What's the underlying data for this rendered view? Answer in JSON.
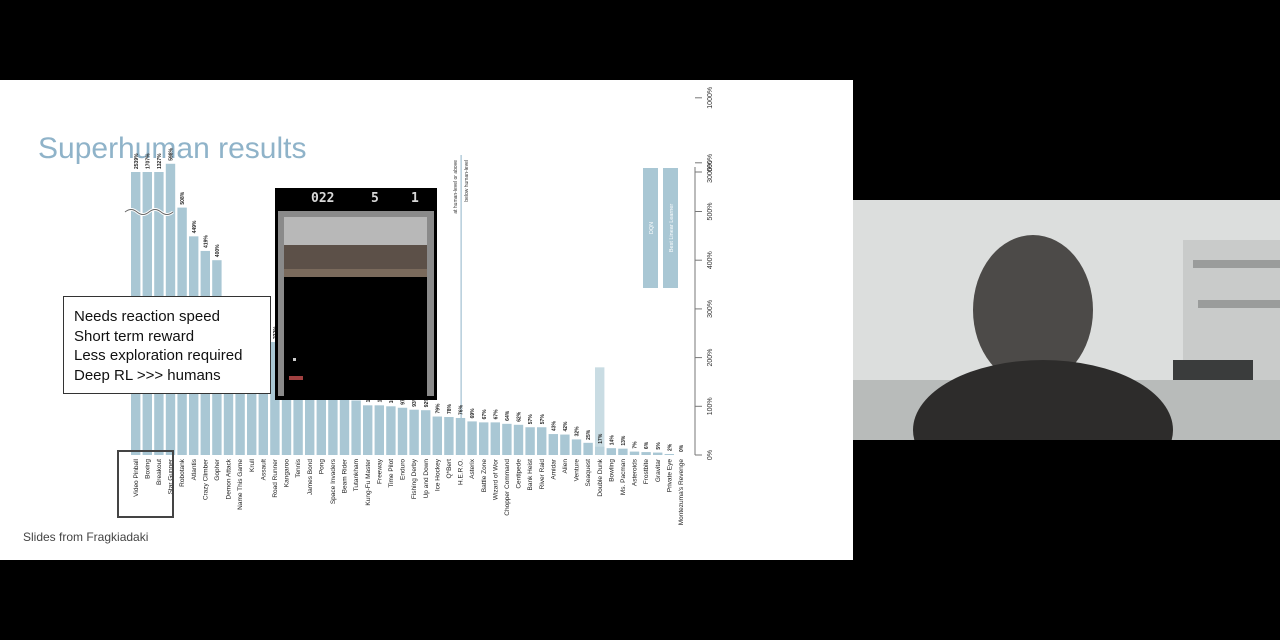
{
  "slide": {
    "title": "Superhuman results",
    "credit": "Slides from Fragkiadaki",
    "callout": [
      "Needs reaction speed",
      "Short term reward",
      "Less exploration required",
      "Deep RL >>> humans"
    ],
    "game": {
      "score_left": "022",
      "score_mid": "5",
      "score_right": "1"
    }
  },
  "chart_data": {
    "type": "bar",
    "title": "",
    "ylabel": "",
    "yticks": [
      "0%",
      "100%",
      "200%",
      "300%",
      "400%",
      "500%",
      "600%",
      "1000%",
      "3000%"
    ],
    "legend": [
      "DQN",
      "Best Linear Learner"
    ],
    "legend_placement": "right",
    "annotations": [
      "at human-level or above",
      "below human-level"
    ],
    "categories": [
      "Video Pinball",
      "Boxing",
      "Breakout",
      "Star Gunner",
      "Robotank",
      "Atlantis",
      "Crazy Climber",
      "Gopher",
      "Demon Attack",
      "Name This Game",
      "Krull",
      "Assault",
      "Road Runner",
      "Kangaroo",
      "Tennis",
      "James Bond",
      "Pong",
      "Space Invaders",
      "Beam Rider",
      "Tutankham",
      "Kung-Fu Master",
      "Freeway",
      "Time Pilot",
      "Enduro",
      "Fishing Derby",
      "Up and Down",
      "Ice Hockey",
      "Q*Bert",
      "H.E.R.O.",
      "Asterix",
      "Battle Zone",
      "Wizard of Wor",
      "Chopper Command",
      "Centipede",
      "Bank Heist",
      "River Raid",
      "Amidar",
      "Alien",
      "Venture",
      "Seaquest",
      "Double Dunk",
      "Bowling",
      "Ms. Pacman",
      "Asteroids",
      "Frostbite",
      "Gravitar",
      "Private Eye",
      "Montezuma's Revenge"
    ],
    "values": [
      2539,
      1707,
      1327,
      598,
      508,
      449,
      419,
      400,
      294,
      278,
      277,
      246,
      232,
      224,
      143,
      141,
      132,
      121,
      119,
      112,
      102,
      102,
      100,
      97,
      93,
      92,
      79,
      78,
      76,
      69,
      67,
      67,
      64,
      62,
      57,
      57,
      43,
      42,
      32,
      25,
      17,
      14,
      13,
      7,
      6,
      5,
      2,
      0
    ],
    "value_labels": [
      "2539%",
      "1707%",
      "1327%",
      "598%",
      "508%",
      "449%",
      "419%",
      "400%",
      "294%",
      "278%",
      "277%",
      "246%",
      "232%",
      "224%",
      "143%",
      "141%",
      "132%",
      "121%",
      "119%",
      "112%",
      "102%",
      "102%",
      "100%",
      "97%",
      "93%",
      "92%",
      "79%",
      "78%",
      "76%",
      "69%",
      "67%",
      "67%",
      "64%",
      "62%",
      "57%",
      "57%",
      "43%",
      "42%",
      "32%",
      "25%",
      "17%",
      "14%",
      "13%",
      "7%",
      "6%",
      "5%",
      "2%",
      "0%"
    ],
    "linear_values": [
      0,
      0,
      0,
      0,
      0,
      0,
      0,
      0,
      0,
      0,
      0,
      0,
      0,
      0,
      0,
      0,
      0,
      0,
      0,
      0,
      0,
      0,
      0,
      0,
      0,
      0,
      0,
      0,
      0,
      0,
      0,
      0,
      0,
      0,
      0,
      0,
      0,
      0,
      0,
      0,
      180,
      0,
      0,
      0,
      0,
      0,
      0,
      0
    ],
    "colors": {
      "dqn": "#a9c7d4",
      "linear": "#bcd3dc"
    }
  }
}
